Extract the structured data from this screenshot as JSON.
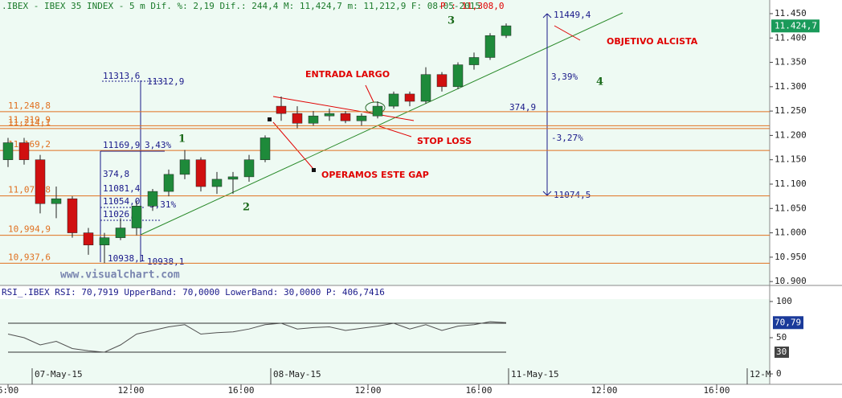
{
  "header": {
    "info": ".IBEX - IBEX 35 INDEX -  5 m Dif. %: 2,19 Dif.: 244,4 M: 11,424,7 m: 11,212,9 F: 08-05-2015",
    "price": "P : 11,308,0"
  },
  "watermark": "www.visualchart.com",
  "annotations": {
    "entrada": "ENTRADA LARGO",
    "objetivo": "OBJETIVO ALCISTA",
    "stop": "STOP LOSS",
    "gap": "OPERAMOS ESTE GAP",
    "n1": "1",
    "n2": "2",
    "n3": "3",
    "n4": "4"
  },
  "measures": [
    "11313,6",
    "11312,9",
    "11169,9",
    "3,43%",
    "374,8",
    "11081,4",
    "11054,0",
    "3,31%",
    "11026,6",
    "10938,1",
    "10938,1",
    "11449,4",
    "3,39%",
    "374,9",
    "-3,27%",
    "11074,5"
  ],
  "chart_data": [
    {
      "type": "candlestick",
      "x": [
        0,
        1,
        2,
        3,
        4,
        5,
        6,
        7,
        8,
        9,
        10,
        11,
        12,
        13,
        14,
        15,
        16,
        17,
        18,
        19,
        20,
        21,
        22,
        23,
        24,
        25,
        26,
        27,
        28,
        29,
        30,
        31
      ],
      "open": [
        11150,
        11185,
        11150,
        11060,
        11070,
        11000,
        10975,
        10990,
        11010,
        11055,
        11085,
        11120,
        11150,
        11095,
        11110,
        11115,
        11150,
        11260,
        11245,
        11225,
        11240,
        11245,
        11230,
        11240,
        11260,
        11285,
        11270,
        11325,
        11300,
        11345,
        11360,
        11405
      ],
      "high": [
        11195,
        11195,
        11160,
        11095,
        11075,
        11010,
        11000,
        11030,
        11065,
        11090,
        11130,
        11170,
        11155,
        11125,
        11125,
        11160,
        11200,
        11280,
        11260,
        11250,
        11255,
        11250,
        11245,
        11270,
        11290,
        11290,
        11340,
        11330,
        11350,
        11370,
        11410,
        11430
      ],
      "low": [
        11135,
        11140,
        11040,
        11030,
        10990,
        10955,
        10938,
        10985,
        10995,
        11045,
        11075,
        11110,
        11085,
        11080,
        11080,
        11105,
        11145,
        11230,
        11215,
        11220,
        11230,
        11225,
        11220,
        11235,
        11255,
        11260,
        11265,
        11290,
        11295,
        11335,
        11355,
        11400
      ],
      "close": [
        11185,
        11150,
        11060,
        11070,
        11000,
        10975,
        10990,
        11010,
        11055,
        11085,
        11120,
        11150,
        11095,
        11110,
        11115,
        11150,
        11195,
        11245,
        11225,
        11240,
        11245,
        11230,
        11240,
        11260,
        11285,
        11270,
        11325,
        11300,
        11345,
        11360,
        11405,
        11425
      ],
      "up_color": "#1e8a3a",
      "down_color": "#d01010",
      "xlim": [
        -0.5,
        47.4
      ],
      "xticks": [
        {
          "value": 0,
          "label": "6:00"
        },
        {
          "value": 7.65,
          "label": "12:00"
        },
        {
          "value": 14.5,
          "label": "16:00"
        },
        {
          "value": 22.4,
          "label": "12:00"
        },
        {
          "value": 29.3,
          "label": "16:00"
        },
        {
          "value": 37.1,
          "label": "12:00"
        },
        {
          "value": 44.1,
          "label": "16:00"
        }
      ],
      "dates": [
        {
          "value": 1.5,
          "label": "07-May-15"
        },
        {
          "value": 16.35,
          "label": "08-May-15"
        },
        {
          "value": 31.15,
          "label": "11-May-15"
        },
        {
          "value": 46,
          "label": "12-M"
        }
      ],
      "ylim": [
        10892,
        11478
      ],
      "yticks": [
        {
          "value": 11450,
          "label": "11.450"
        },
        {
          "value": 11400,
          "label": "11.400"
        },
        {
          "value": 11350,
          "label": "11.350"
        },
        {
          "value": 11300,
          "label": "11.300"
        },
        {
          "value": 11250,
          "label": "11.250"
        },
        {
          "value": 11200,
          "label": "11.200"
        },
        {
          "value": 11150,
          "label": "11.150"
        },
        {
          "value": 11100,
          "label": "11.100"
        },
        {
          "value": 11050,
          "label": "11.050"
        },
        {
          "value": 11000,
          "label": "11.000"
        },
        {
          "value": 10950,
          "label": "10.950"
        },
        {
          "value": 10900,
          "label": "10.900"
        }
      ],
      "levels": [
        {
          "value": 11248.8,
          "label": "11,248,8"
        },
        {
          "value": 11219.9,
          "label": "11,219,9"
        },
        {
          "value": 11214.1,
          "label": "11,214,1"
        },
        {
          "value": 11169.2,
          "label": "11,169,2"
        },
        {
          "value": 11075.8,
          "label": "11,075,8"
        },
        {
          "value": 10994.9,
          "label": "10,994,9"
        },
        {
          "value": 10937.6,
          "label": "10,937,6"
        }
      ],
      "level_color": "#e07020",
      "last_price": {
        "value": 11424.7,
        "label": "11.424,7"
      }
    },
    {
      "type": "line",
      "title": "RSI_.IBEX RSI: 70,7919 UpperBand: 70,0000 LowerBand: 30,0000 P: 406,7416",
      "x": [
        0,
        1,
        2,
        3,
        4,
        5,
        6,
        7,
        8,
        9,
        10,
        11,
        12,
        13,
        14,
        15,
        16,
        17,
        18,
        19,
        20,
        21,
        22,
        23,
        24,
        25,
        26,
        27,
        28,
        29,
        30,
        31
      ],
      "values": [
        55,
        50,
        40,
        45,
        35,
        32,
        30,
        40,
        55,
        60,
        65,
        68,
        55,
        57,
        58,
        62,
        68,
        70,
        62,
        64,
        65,
        60,
        63,
        66,
        70,
        62,
        68,
        60,
        66,
        68,
        72,
        70.8
      ],
      "color": "#505050",
      "ylim": [
        -14.4,
        103.3
      ],
      "yticks": [
        100,
        50,
        0
      ],
      "bands": [
        70,
        30
      ],
      "last_value": {
        "value": 70.79,
        "label": "70,79"
      }
    }
  ]
}
